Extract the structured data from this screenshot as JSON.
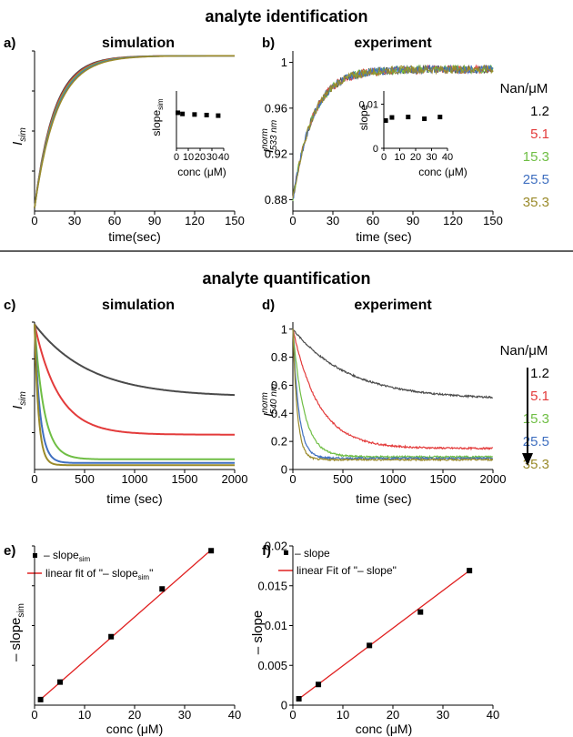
{
  "section_top": "analyte identification",
  "section_bottom": "analyte quantification",
  "legend": {
    "title": "Nan/μM",
    "labels": [
      "1.2",
      "5.1",
      "15.3",
      "25.5",
      "35.3"
    ]
  },
  "colors": {
    "s1": "#4a4a4a",
    "s2": "#e33b3b",
    "s3": "#6fbe44",
    "s4": "#3f6fc0",
    "s5": "#9a8a2a",
    "fit": "#e02020",
    "marker": "#000000"
  },
  "panels": {
    "a": {
      "letter": "a)",
      "title": "simulation",
      "ylabel": "I",
      "ylabel_sub": "sim",
      "xlabel": "time(sec)",
      "inset": {
        "ylabel": "slope",
        "ylabel_sub": "sim",
        "xlabel": "conc (μM)"
      }
    },
    "b": {
      "letter": "b)",
      "title": "experiment",
      "ylabel": "I",
      "ylabel_sup": "norm",
      "ylabel_sub": "533 nm",
      "xlabel": "time (sec)",
      "inset": {
        "ylabel": "slope",
        "xlabel": "conc (μM)"
      }
    },
    "c": {
      "letter": "c)",
      "title": "simulation",
      "ylabel": "I",
      "ylabel_sub": "sim",
      "xlabel": "time (sec)"
    },
    "d": {
      "letter": "d)",
      "title": "experiment",
      "ylabel": "I",
      "ylabel_sup": "norm",
      "ylabel_sub": "540 nm",
      "xlabel": "time (sec)"
    },
    "e": {
      "letter": "e)",
      "ylabel": "– slope",
      "ylabel_sub": "sim",
      "xlabel": "conc (μM)",
      "legend_marker": "– slope",
      "legend_marker_sub": "sim",
      "legend_fit": "linear fit of \"– slope",
      "legend_fit_sub": "sim",
      "legend_fit_end": "\""
    },
    "f": {
      "letter": "f)",
      "ylabel": "– slope",
      "xlabel": "conc (μM)",
      "legend_marker": "– slope",
      "legend_fit": "linear Fit of \"– slope\""
    }
  },
  "chart_data": [
    {
      "id": "a",
      "type": "line",
      "title": "simulation",
      "xlabel": "time(sec)",
      "ylabel": "I_sim",
      "xlim": [
        0,
        150
      ],
      "xticks": [
        0,
        30,
        60,
        90,
        120,
        150
      ],
      "series": [
        {
          "name": "1.2",
          "tau": 14.5
        },
        {
          "name": "5.1",
          "tau": 15
        },
        {
          "name": "15.3",
          "tau": 15.5
        },
        {
          "name": "25.5",
          "tau": 16
        },
        {
          "name": "35.3",
          "tau": 16.5
        }
      ]
    },
    {
      "id": "a_inset",
      "type": "scatter",
      "xlabel": "conc (μM)",
      "ylabel": "slope_sim",
      "xlim": [
        0,
        40
      ],
      "xticks": [
        0,
        10,
        20,
        30,
        40
      ],
      "x": [
        1.2,
        5.1,
        15.3,
        25.5,
        35.3
      ],
      "y": [
        0.62,
        0.6,
        0.59,
        0.58,
        0.57
      ],
      "ylim": [
        0,
        1
      ]
    },
    {
      "id": "b",
      "type": "line",
      "title": "experiment",
      "xlabel": "time (sec)",
      "ylabel": "I_533 nm^norm",
      "xlim": [
        0,
        150
      ],
      "xticks": [
        0,
        30,
        60,
        90,
        120,
        150
      ],
      "ylim": [
        0.87,
        1.01
      ],
      "yticks": [
        0.88,
        0.92,
        0.96,
        1
      ],
      "ytick_labels": [
        "0.88",
        "0.92",
        "0.96",
        "1"
      ],
      "series": [
        {
          "name": "1.2",
          "y0": 0.88,
          "yinf": 0.994,
          "tau": 15
        },
        {
          "name": "5.1",
          "y0": 0.88,
          "yinf": 0.994,
          "tau": 15
        },
        {
          "name": "15.3",
          "y0": 0.88,
          "yinf": 0.994,
          "tau": 15
        },
        {
          "name": "25.5",
          "y0": 0.88,
          "yinf": 0.994,
          "tau": 15
        },
        {
          "name": "35.3",
          "y0": 0.88,
          "yinf": 0.994,
          "tau": 15
        }
      ]
    },
    {
      "id": "b_inset",
      "type": "scatter",
      "xlabel": "conc (μM)",
      "ylabel": "slope",
      "xlim": [
        0,
        40
      ],
      "xticks": [
        0,
        10,
        20,
        30,
        40
      ],
      "ylim": [
        0,
        0.013
      ],
      "yticks": [
        0,
        0.01
      ],
      "x": [
        1.2,
        5.1,
        15.3,
        25.5,
        35.3
      ],
      "y": [
        0.0063,
        0.007,
        0.0071,
        0.0067,
        0.0071
      ]
    },
    {
      "id": "c",
      "type": "line",
      "title": "simulation",
      "xlabel": "time (sec)",
      "ylabel": "I_sim",
      "xlim": [
        0,
        2000
      ],
      "xticks": [
        0,
        500,
        1000,
        1500,
        2000
      ],
      "ylim": [
        0,
        1
      ],
      "series": [
        {
          "name": "1.2",
          "yinf": 0.5,
          "tau": 550
        },
        {
          "name": "5.1",
          "yinf": 0.24,
          "tau": 240
        },
        {
          "name": "15.3",
          "yinf": 0.07,
          "tau": 95
        },
        {
          "name": "25.5",
          "yinf": 0.045,
          "tau": 55
        },
        {
          "name": "35.3",
          "yinf": 0.03,
          "tau": 40
        }
      ]
    },
    {
      "id": "d",
      "type": "line",
      "title": "experiment",
      "xlabel": "time (sec)",
      "ylabel": "I_540 nm^norm",
      "xlim": [
        0,
        2000
      ],
      "xticks": [
        0,
        500,
        1000,
        1500,
        2000
      ],
      "ylim": [
        0,
        1.05
      ],
      "yticks": [
        0,
        0.2,
        0.4,
        0.6,
        0.8,
        1
      ],
      "ytick_labels": [
        "0",
        "0.2",
        "0.4",
        "0.6",
        "0.8",
        "1"
      ],
      "series": [
        {
          "name": "1.2",
          "yinf": 0.5,
          "tau": 560
        },
        {
          "name": "5.1",
          "yinf": 0.15,
          "tau": 260
        },
        {
          "name": "15.3",
          "yinf": 0.09,
          "tau": 110
        },
        {
          "name": "25.5",
          "yinf": 0.08,
          "tau": 60
        },
        {
          "name": "35.3",
          "yinf": 0.07,
          "tau": 45
        }
      ]
    },
    {
      "id": "e",
      "type": "scatter",
      "xlabel": "conc (μM)",
      "ylabel": "– slope_sim",
      "xlim": [
        0,
        40
      ],
      "xticks": [
        0,
        10,
        20,
        30,
        40
      ],
      "ylim": [
        0,
        1
      ],
      "x": [
        1.2,
        5.1,
        15.3,
        25.5,
        35.3
      ],
      "y": [
        0.035,
        0.145,
        0.43,
        0.73,
        0.97
      ],
      "fit": {
        "name": "linear fit of \"– slope_sim\"",
        "x": [
          0.8,
          35.3
        ],
        "y": [
          0.025,
          0.975
        ]
      }
    },
    {
      "id": "f",
      "type": "scatter",
      "xlabel": "conc (μM)",
      "ylabel": "– slope",
      "xlim": [
        0,
        40
      ],
      "xticks": [
        0,
        10,
        20,
        30,
        40
      ],
      "ylim": [
        0,
        0.02
      ],
      "yticks": [
        0,
        0.005,
        0.01,
        0.015,
        0.02
      ],
      "ytick_labels": [
        "0",
        "0.005",
        "0.01",
        "0.015",
        "0.02"
      ],
      "x": [
        1.2,
        5.1,
        15.3,
        25.5,
        35.3
      ],
      "y": [
        0.0008,
        0.0026,
        0.0075,
        0.0117,
        0.0169
      ],
      "fit": {
        "name": "linear Fit of \"– slope\"",
        "x": [
          0.8,
          35.3
        ],
        "y": [
          0.0006,
          0.0169
        ]
      }
    }
  ]
}
